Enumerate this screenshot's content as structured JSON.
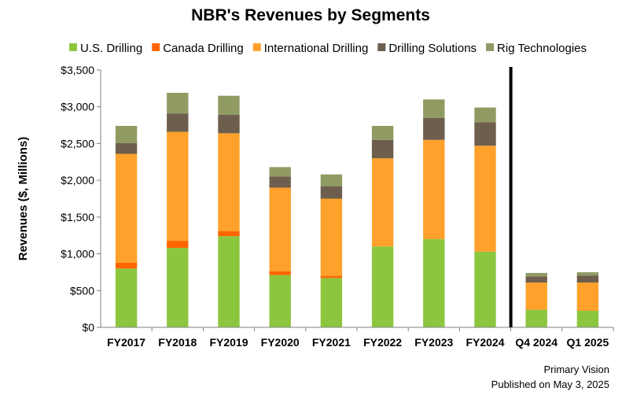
{
  "chart_data": {
    "type": "bar",
    "stacked": true,
    "title": "NBR's Revenues by Segments",
    "ylabel": "Revenues ($, Millions)",
    "xlabel": "",
    "ylim": [
      0,
      3500
    ],
    "yticks": [
      0,
      500,
      1000,
      1500,
      2000,
      2500,
      3000,
      3500
    ],
    "ytick_labels": [
      "$0",
      "$500",
      "$1,000",
      "$1,500",
      "$2,000",
      "$2,500",
      "$3,000",
      "$3,500"
    ],
    "grid": false,
    "legend_position": "top",
    "categories": [
      "FY2017",
      "FY2018",
      "FY2019",
      "FY2020",
      "FY2021",
      "FY2022",
      "FY2023",
      "FY2024",
      "Q4 2024",
      "Q1 2025"
    ],
    "divider_after_category": "FY2024",
    "series": [
      {
        "name": "U.S. Drilling",
        "color": "#8cc63f",
        "values": [
          800,
          1080,
          1240,
          710,
          670,
          1100,
          1200,
          1030,
          240,
          225
        ]
      },
      {
        "name": "Canada Drilling",
        "color": "#ff6600",
        "values": [
          80,
          100,
          70,
          50,
          30,
          0,
          0,
          0,
          0,
          0
        ]
      },
      {
        "name": "International Drilling",
        "color": "#ffa12b",
        "values": [
          1480,
          1480,
          1330,
          1140,
          1050,
          1200,
          1350,
          1440,
          370,
          385
        ]
      },
      {
        "name": "Drilling Solutions",
        "color": "#6d5e4e",
        "values": [
          145,
          250,
          250,
          150,
          170,
          250,
          300,
          320,
          80,
          95
        ]
      },
      {
        "name": "Rig Technologies",
        "color": "#8f9b63",
        "values": [
          235,
          280,
          260,
          130,
          160,
          190,
          250,
          200,
          50,
          45
        ]
      }
    ]
  },
  "footer": {
    "source": "Primary Vision",
    "published": "Published on May 3, 2025"
  }
}
